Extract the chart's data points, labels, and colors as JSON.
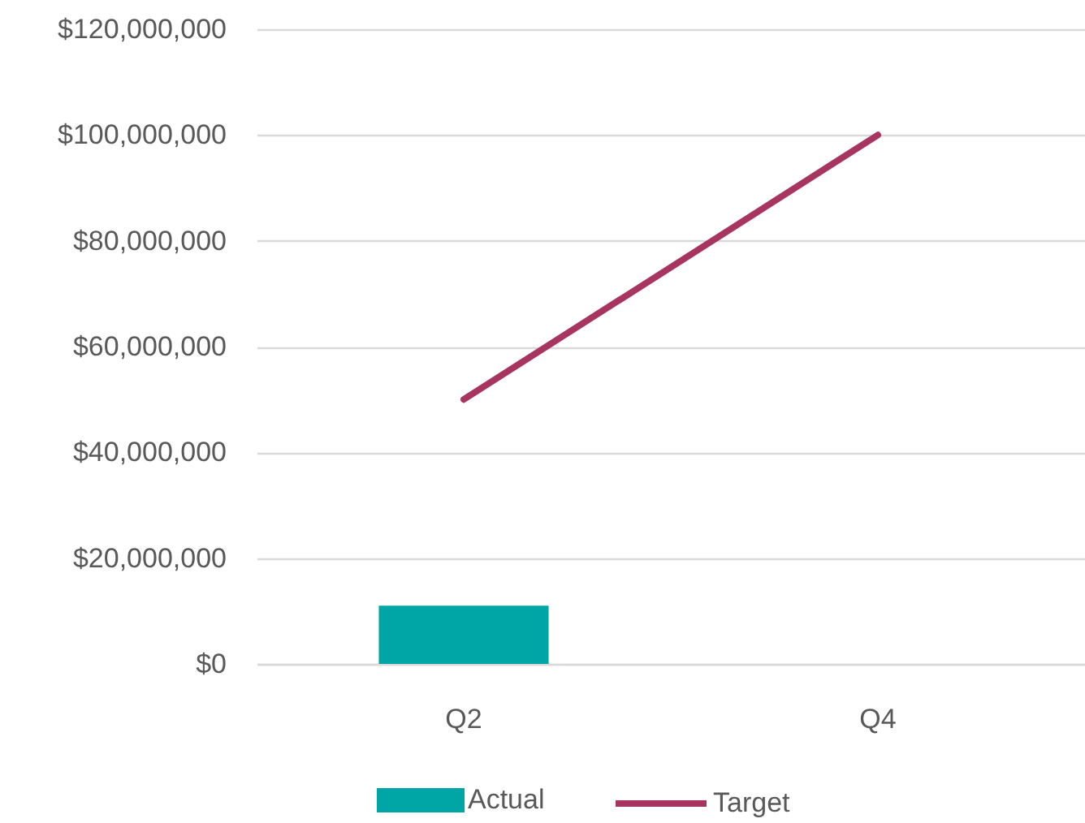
{
  "chart_data": {
    "type": "bar",
    "categories": [
      "Q2",
      "Q4"
    ],
    "series": [
      {
        "name": "Actual",
        "color": "#00a6a6",
        "values": [
          11000000,
          null
        ]
      },
      {
        "name": "Target",
        "type": "line",
        "color": "#a8355f",
        "values": [
          50000000,
          100000000
        ]
      }
    ],
    "ylim": [
      0,
      120000000
    ],
    "yticks": [
      {
        "value": 0,
        "label": "$0"
      },
      {
        "value": 20000000,
        "label": "$20,000,000"
      },
      {
        "value": 40000000,
        "label": "$40,000,000"
      },
      {
        "value": 60000000,
        "label": "$60,000,000"
      },
      {
        "value": 80000000,
        "label": "$80,000,000"
      },
      {
        "value": 100000000,
        "label": "$100,000,000"
      },
      {
        "value": 120000000,
        "label": "$120,000,000"
      }
    ],
    "grid": "y",
    "legend": "bottom"
  }
}
